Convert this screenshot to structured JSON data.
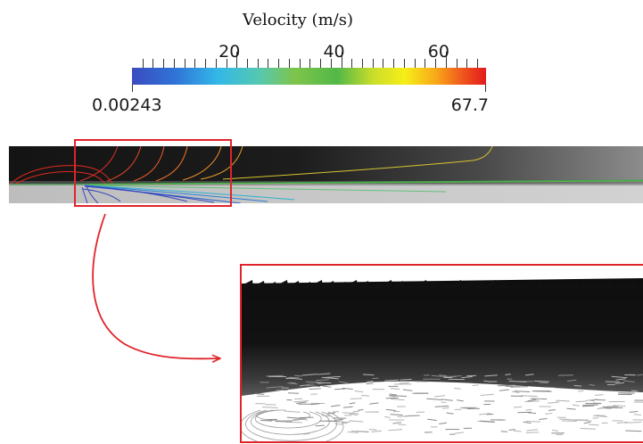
{
  "legend": {
    "title": "Velocity (m/s)",
    "min_label": "0.00243",
    "max_label": "67.7",
    "range": [
      0.00243,
      67.7
    ],
    "major_ticks": [
      {
        "value": 20,
        "label": "20"
      },
      {
        "value": 40,
        "label": "40"
      },
      {
        "value": 60,
        "label": "60"
      }
    ],
    "minor_tick_step": 2,
    "colormap": [
      "#3b4cc0",
      "#2f73d6",
      "#33b7e8",
      "#55c8b0",
      "#7ec44a",
      "#52b848",
      "#c9dd2a",
      "#f6ef17",
      "#f8a61a",
      "#f05a1c",
      "#e41a1c"
    ]
  },
  "colors": {
    "highlight": "#e0242b",
    "channel_dark": "#141414",
    "channel_floor": "#c8c8c8",
    "inset_background": "#ffffff"
  },
  "elements": {
    "highlight_box": "red rectangle marking zoomed region",
    "arrow": "red curved arrow pointing to inset",
    "inset": "zoomed velocity vector field"
  }
}
